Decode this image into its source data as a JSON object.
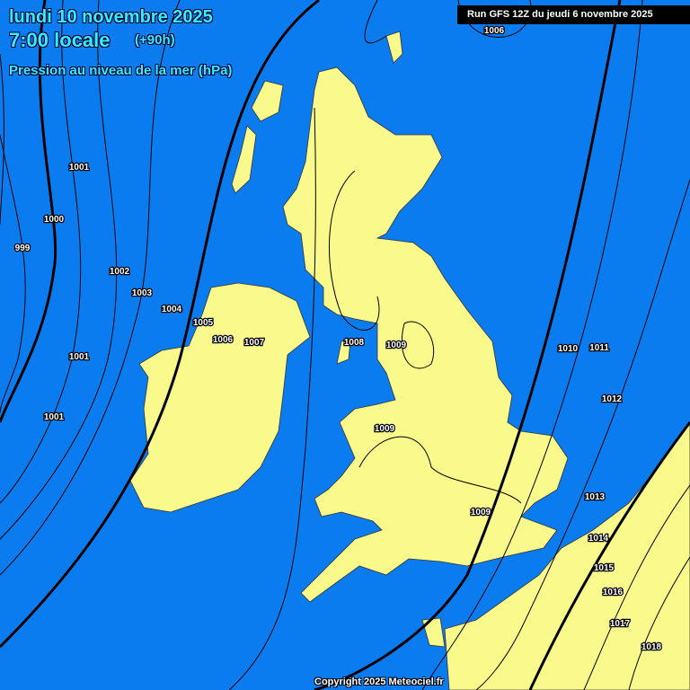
{
  "header": {
    "date": "lundi 10 novembre 2025",
    "time": "7:00 locale",
    "lead": "(+90h)",
    "parameter": "Pression au niveau de la mer (hPa)"
  },
  "run": "Run GFS 12Z du jeudi 6 novembre 2025",
  "copyright": "Copyright 2025 Meteociel.fr",
  "colors": {
    "sea": "#0b7cf0",
    "land": "#fafa8c",
    "title_text": "#33f0ff"
  },
  "isobar_labels": [
    "1006",
    "1001",
    "1000",
    "999",
    "1002",
    "1003",
    "1004",
    "1005",
    "1006",
    "1007",
    "1008",
    "1009",
    "1001",
    "1001",
    "1009",
    "1009",
    "1010",
    "1011",
    "1012",
    "1013",
    "1014",
    "1015",
    "1016",
    "1017",
    "1018"
  ]
}
